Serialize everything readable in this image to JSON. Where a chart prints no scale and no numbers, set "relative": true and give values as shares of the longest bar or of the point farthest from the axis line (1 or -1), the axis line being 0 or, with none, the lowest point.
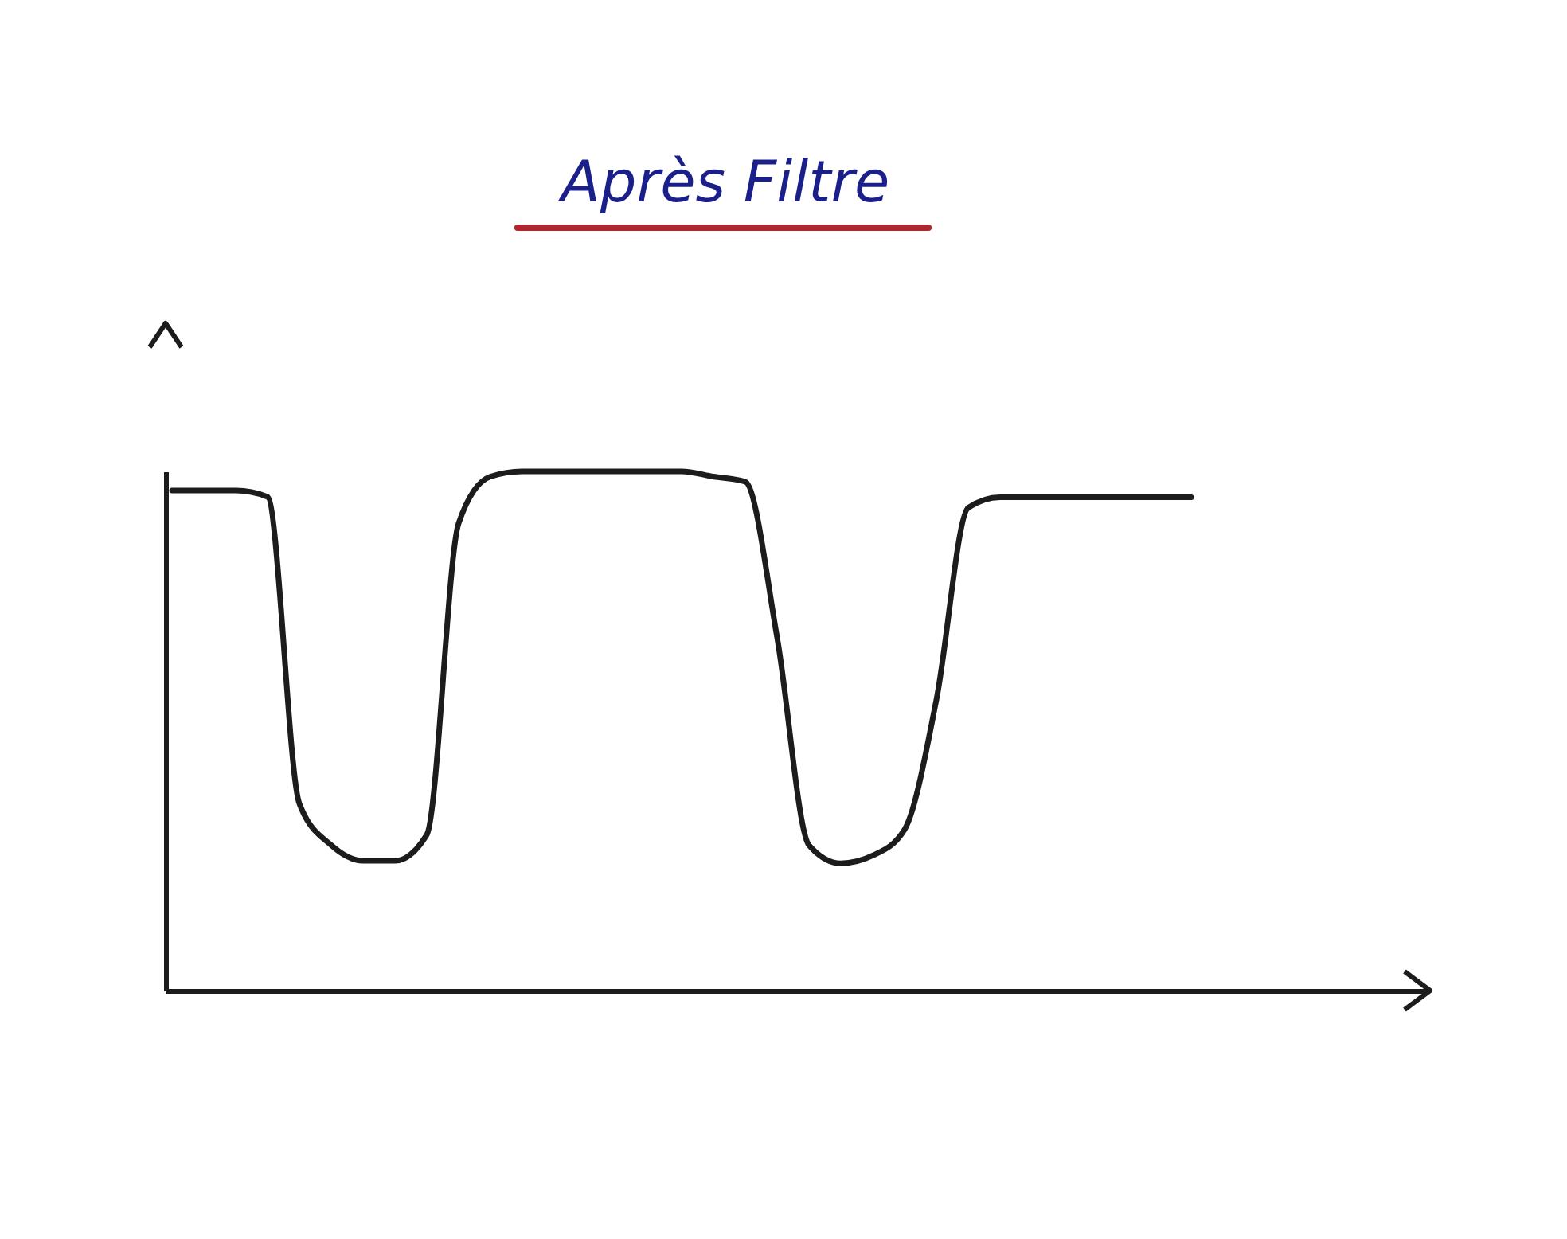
{
  "chart_data": {
    "type": "line",
    "title": "Après Filtre",
    "relative": true,
    "categories": [
      null,
      null,
      null,
      null,
      null,
      null,
      null,
      null,
      null,
      null,
      null,
      null,
      null,
      null,
      null,
      null,
      null,
      null,
      null,
      null,
      null,
      null,
      null,
      null,
      null,
      null,
      null,
      null,
      null,
      null,
      null,
      null,
      null
    ],
    "series": [
      {
        "color": "#1c1c1c",
        "values": [
          0.963,
          0.963,
          0.963,
          0.951,
          0.36,
          0.28,
          0.25,
          0.25,
          0.3,
          0.9,
          0.99,
          1,
          1,
          1,
          1,
          1,
          1,
          0.99,
          0.98,
          0.68,
          0.28,
          0.245,
          0.26,
          0.31,
          0.56,
          0.93,
          0.95,
          0.95,
          0.95,
          0.95,
          0.95,
          0.95,
          0.95
        ]
      }
    ],
    "grid": false,
    "marker": "none",
    "line_style": "solid"
  }
}
